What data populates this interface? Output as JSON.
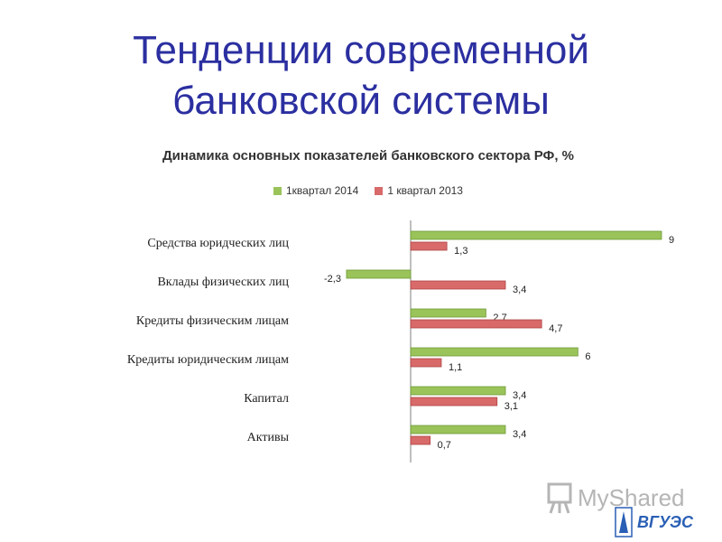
{
  "slide": {
    "title_line1": "Тенденции современной",
    "title_line2": "банковской системы"
  },
  "watermark": {
    "text": "MyShared",
    "icon": "presentation-board-icon"
  },
  "logo": {
    "text": "ВГУЭС",
    "icon": "university-emblem-icon"
  },
  "colors": {
    "title": "#2b2fa0",
    "series_2014": "#9ac45a",
    "series_2013": "#d86a6a"
  },
  "chart_data": {
    "type": "bar",
    "orientation": "horizontal",
    "title": "Динамика основных показателей банковского сектора РФ, %",
    "legend_position": "top",
    "grid": false,
    "categories": [
      "Средства юридческих лиц",
      "Вклады физических лиц",
      "Кредиты физическим лицам",
      "Кредиты юридическим лицам",
      "Капитал",
      "Активы"
    ],
    "series": [
      {
        "name": "1квартал 2014",
        "color": "#9ac45a",
        "values": [
          9,
          -2.3,
          2.7,
          6,
          3.4,
          3.4
        ],
        "labels": [
          "9",
          "-2,3",
          "2,7",
          "6",
          "3,4",
          "3,4"
        ]
      },
      {
        "name": "1 квартал 2013",
        "color": "#d86a6a",
        "values": [
          1.3,
          3.4,
          4.7,
          1.1,
          3.1,
          0.7
        ],
        "labels": [
          "1,3",
          "3,4",
          "4,7",
          "1,1",
          "3,1",
          "0,7"
        ]
      }
    ],
    "xlim": [
      -3,
      9.5
    ]
  }
}
